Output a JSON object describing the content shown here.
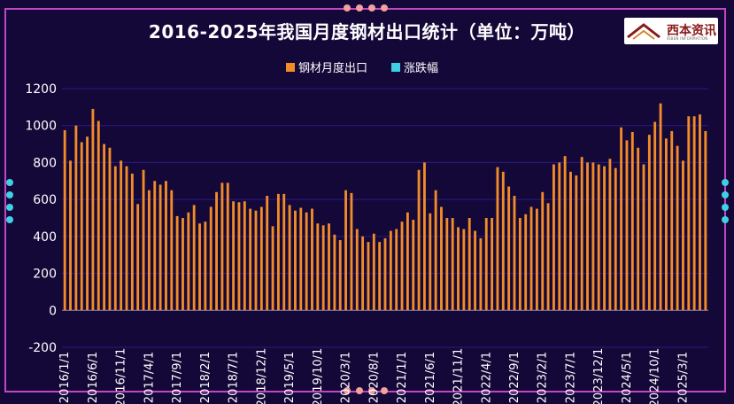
{
  "title": "2016-2025年我国月度钢材出口统计（单位：万吨）",
  "logo": {
    "text": "西本资讯",
    "sub": "XIBEN INFORMATION"
  },
  "colors": {
    "background": "#140838",
    "frame": "#c247c2",
    "bar": "#f28c28",
    "change": "#3fd0e6",
    "grid": "#2a1a8a",
    "text": "#ffffff"
  },
  "chart_data": {
    "type": "bar",
    "title": "2016-2025年我国月度钢材出口统计（单位：万吨）",
    "legend": [
      "钢材月度出口",
      "涨跌幅"
    ],
    "legend_position": "top-center",
    "ylim": [
      -200,
      1200
    ],
    "yticks": [
      -200,
      0,
      200,
      400,
      600,
      800,
      1000,
      1200
    ],
    "grid": true,
    "x_tick_labels": [
      "2016/1/1",
      "2016/6/1",
      "2016/11/1",
      "2017/4/1",
      "2017/9/1",
      "2018/2/1",
      "2018/7/1",
      "2018/12/1",
      "2019/5/1",
      "2019/10/1",
      "2020/3/1",
      "2020/8/1",
      "2021/1/1",
      "2021/6/1",
      "2021/11/1",
      "2022/4/1",
      "2022/9/1",
      "2023/2/1",
      "2023/7/1",
      "2023/12/1",
      "2024/5/1",
      "2024/10/1",
      "2025/3/1"
    ],
    "series": [
      {
        "name": "钢材月度出口",
        "color": "#f28c28",
        "start": "2016-01",
        "values": [
          975,
          810,
          1000,
          910,
          940,
          1090,
          1025,
          900,
          880,
          780,
          810,
          780,
          740,
          575,
          760,
          650,
          700,
          680,
          700,
          650,
          510,
          500,
          530,
          570,
          470,
          480,
          560,
          640,
          690,
          690,
          590,
          585,
          590,
          550,
          540,
          560,
          620,
          455,
          630,
          630,
          570,
          540,
          555,
          530,
          550,
          470,
          460,
          470,
          410,
          380,
          650,
          635,
          440,
          400,
          370,
          415,
          370,
          390,
          430,
          440,
          480,
          530,
          490,
          760,
          800,
          525,
          650,
          560,
          500,
          500,
          450,
          440,
          500,
          430,
          390,
          500,
          500,
          775,
          750,
          670,
          620,
          500,
          520,
          560,
          550,
          640,
          580,
          790,
          800,
          835,
          750,
          730,
          830,
          800,
          800,
          790,
          780,
          820,
          770,
          990,
          920,
          965,
          880,
          790,
          950,
          1020,
          1120,
          930,
          970,
          890,
          810,
          1050,
          1050,
          1060,
          970
        ]
      }
    ]
  }
}
